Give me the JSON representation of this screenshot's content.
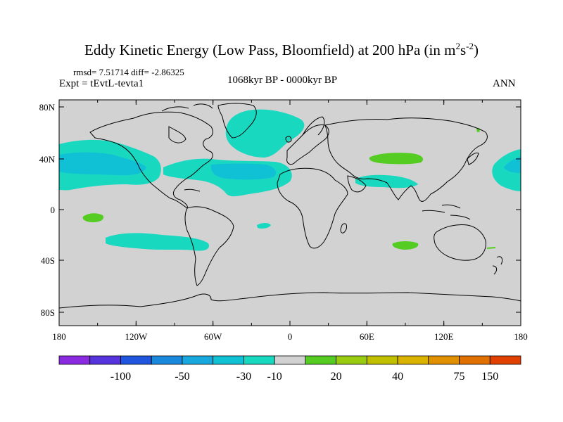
{
  "title": {
    "main": "Eddy Kinetic Energy (Low Pass, Bloomfield) at 200 hPa (in m",
    "sup1": "2",
    "mid": "s",
    "sup2": "-2",
    "end": ")"
  },
  "stats": "rmsd= 7.51714 diff= -2.86325",
  "experiment": "Expt = tEvtL-tevta1",
  "period": "1068kyr BP - 0000kyr BP",
  "season": "ANN",
  "lat_ticks": [
    "80N",
    "40N",
    "0",
    "40S",
    "80S"
  ],
  "lon_ticks": [
    "180",
    "120W",
    "60W",
    "0",
    "60E",
    "120E",
    "180"
  ],
  "colorbar": {
    "labels": [
      "-100",
      "-50",
      "-30",
      "-10",
      "20",
      "40",
      "75",
      "150"
    ],
    "colors": [
      "#8a2be2",
      "#5533dd",
      "#2255dd",
      "#1a88dd",
      "#19a8dd",
      "#10c0d5",
      "#19d8c0",
      "#d2d2d2",
      "#55cc22",
      "#99cc11",
      "#c0c000",
      "#d9b300",
      "#e09000",
      "#e07000",
      "#e04000"
    ]
  },
  "map_colors": {
    "land_sea_bg": "#d2d2d2",
    "negative_anomaly": "#19d8c0",
    "negative_anomaly_core": "#10c0d5",
    "positive_anomaly": "#55cc22",
    "coast": "#000000"
  }
}
